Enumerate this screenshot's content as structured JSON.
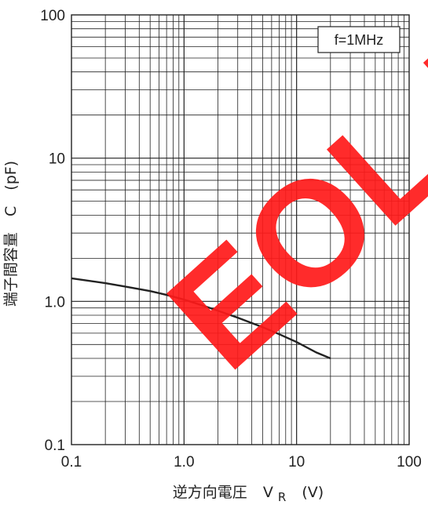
{
  "chart_data": {
    "type": "line",
    "x_scale": "log",
    "y_scale": "log",
    "xlim": [
      0.1,
      100
    ],
    "ylim": [
      0.1,
      100
    ],
    "x_ticks": [
      "0.1",
      "1.0",
      "10",
      "100"
    ],
    "y_ticks": [
      "0.1",
      "1.0",
      "10",
      "100"
    ],
    "xlabel": {
      "main": "逆方向電圧",
      "symbol": "V",
      "subscript": "R",
      "unit": "(V)"
    },
    "ylabel": {
      "main": "端子間容量",
      "symbol": "C",
      "unit": "(pF)"
    },
    "annotation": "f=1MHz",
    "grid": true,
    "line_color": "#222222",
    "series": [
      {
        "x": [
          0.1,
          0.2,
          0.3,
          0.5,
          0.7,
          1.0,
          1.5,
          2.0,
          3.0,
          5.0,
          7.0,
          10,
          15,
          20
        ],
        "y": [
          1.45,
          1.34,
          1.27,
          1.18,
          1.11,
          1.03,
          0.93,
          0.86,
          0.77,
          0.66,
          0.59,
          0.52,
          0.44,
          0.4
        ]
      }
    ]
  },
  "watermark": {
    "text": "EOL P",
    "color": "#ff1a1a"
  }
}
